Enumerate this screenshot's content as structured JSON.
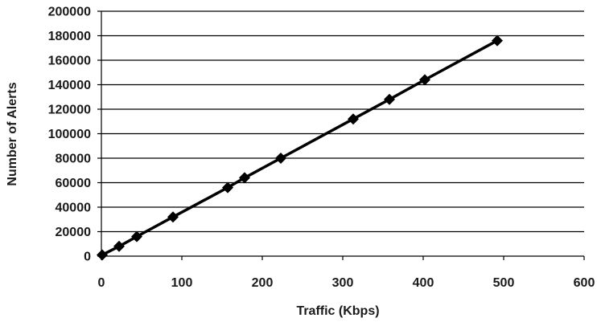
{
  "chart_data": {
    "type": "line",
    "title": "",
    "xlabel": "Traffic (Kbps)",
    "ylabel": "Number of Alerts",
    "xlim": [
      0,
      600
    ],
    "ylim": [
      0,
      200000
    ],
    "x_ticks": [
      0,
      100,
      200,
      300,
      400,
      500,
      600
    ],
    "y_ticks": [
      0,
      20000,
      40000,
      60000,
      80000,
      100000,
      120000,
      140000,
      160000,
      180000,
      200000
    ],
    "grid": "horizontal",
    "legend": "none",
    "series": [
      {
        "marker": "diamond",
        "color": "#000000",
        "x": [
          1,
          22,
          44,
          89,
          157,
          178,
          223,
          313,
          358,
          402,
          492
        ],
        "y": [
          1000,
          8000,
          16000,
          32000,
          56000,
          64000,
          80000,
          112000,
          128000,
          144000,
          176000
        ]
      }
    ]
  }
}
